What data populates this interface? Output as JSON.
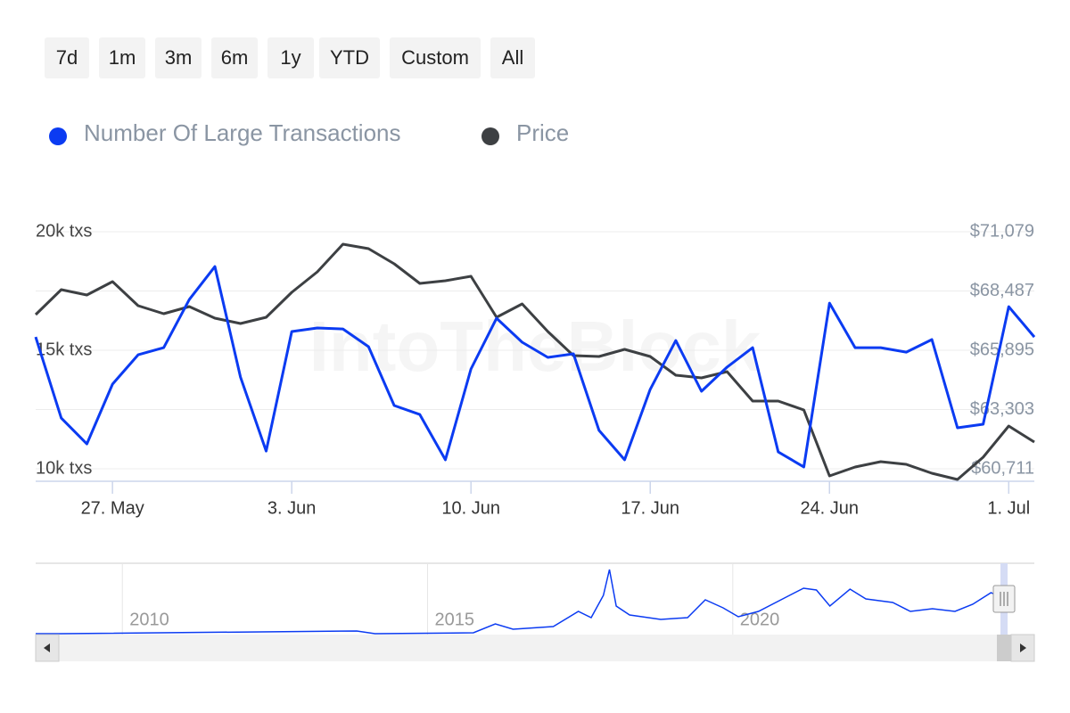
{
  "range_buttons": [
    "7d",
    "1m",
    "3m",
    "6m",
    "1y",
    "YTD",
    "Custom",
    "All"
  ],
  "chart_data": {
    "type": "line",
    "watermark": "IntoTheBlock",
    "categories": [
      null,
      null,
      null,
      "27. May",
      null,
      null,
      null,
      null,
      null,
      null,
      "3. Jun",
      null,
      null,
      null,
      null,
      null,
      null,
      "10. Jun",
      null,
      null,
      null,
      null,
      null,
      null,
      "17. Jun",
      null,
      null,
      null,
      null,
      null,
      null,
      "24. Jun",
      null,
      null,
      null,
      null,
      null,
      null,
      "1. Jul",
      null
    ],
    "series": [
      {
        "name": "Number Of Large Transactions",
        "color": "#0b3bf2",
        "axis": "y",
        "values": [
          15560,
          12140,
          11050,
          13570,
          14810,
          15110,
          17140,
          18530,
          13870,
          10750,
          15790,
          15940,
          15900,
          15150,
          12670,
          12290,
          10380,
          14210,
          16350,
          15340,
          14700,
          14850,
          11620,
          10380,
          13350,
          15410,
          13270,
          14290,
          15110,
          10710,
          10080,
          16990,
          15110,
          15110,
          14920,
          15450,
          11730,
          11880,
          16840,
          15560
        ]
      },
      {
        "name": "Price",
        "color": "#3d4043",
        "axis": "y2",
        "values": [
          67454,
          68545,
          68311,
          68896,
          67844,
          67493,
          67805,
          67298,
          67064,
          67337,
          68428,
          69325,
          70533,
          70338,
          69676,
          68818,
          68935,
          69130,
          67337,
          67922,
          66713,
          65661,
          65622,
          65933,
          65622,
          64803,
          64686,
          64959,
          63673,
          63673,
          63283,
          60398,
          60788,
          61022,
          60905,
          60515,
          60243,
          61217,
          62582,
          61880
        ]
      }
    ],
    "ylim": [
      9474,
      20000
    ],
    "yticks": [
      {
        "value": 10000,
        "label": "10k txs"
      },
      {
        "value": 15000,
        "label": "15k txs"
      },
      {
        "value": 20000,
        "label": "20k txs"
      }
    ],
    "y2lim": [
      60165,
      71079
    ],
    "y2ticks": [
      {
        "value": 60711,
        "label": "$60,711"
      },
      {
        "value": 63303,
        "label": "$63,303"
      },
      {
        "value": 65895,
        "label": "$65,895"
      },
      {
        "value": 68487,
        "label": "$68,487"
      },
      {
        "value": 71079,
        "label": "$71,079"
      }
    ],
    "grid": true,
    "navigator": {
      "color": "#0b3bf2",
      "xlim": [
        2008.58,
        2024.94
      ],
      "xticks": [
        2010,
        2015,
        2020
      ],
      "ylim": [
        0,
        80000
      ],
      "x": [
        2008.58,
        2008.99,
        2013.84,
        2014.14,
        2015.75,
        2016.11,
        2016.4,
        2017.06,
        2017.47,
        2017.68,
        2017.88,
        2017.98,
        2018.09,
        2018.31,
        2018.82,
        2019.26,
        2019.55,
        2019.84,
        2020.09,
        2020.42,
        2020.93,
        2021.16,
        2021.37,
        2021.59,
        2021.92,
        2022.18,
        2022.62,
        2022.91,
        2023.27,
        2023.64,
        2023.93,
        2024.23,
        2024.45
      ],
      "values": [
        1000,
        1000,
        4200,
        1000,
        2100,
        12500,
        6200,
        9400,
        27000,
        19700,
        45700,
        75800,
        33200,
        22900,
        17700,
        19700,
        40500,
        31200,
        20800,
        27000,
        45700,
        54000,
        51900,
        33200,
        53000,
        41600,
        37400,
        27000,
        30100,
        27000,
        35300,
        48800,
        41600
      ]
    }
  }
}
